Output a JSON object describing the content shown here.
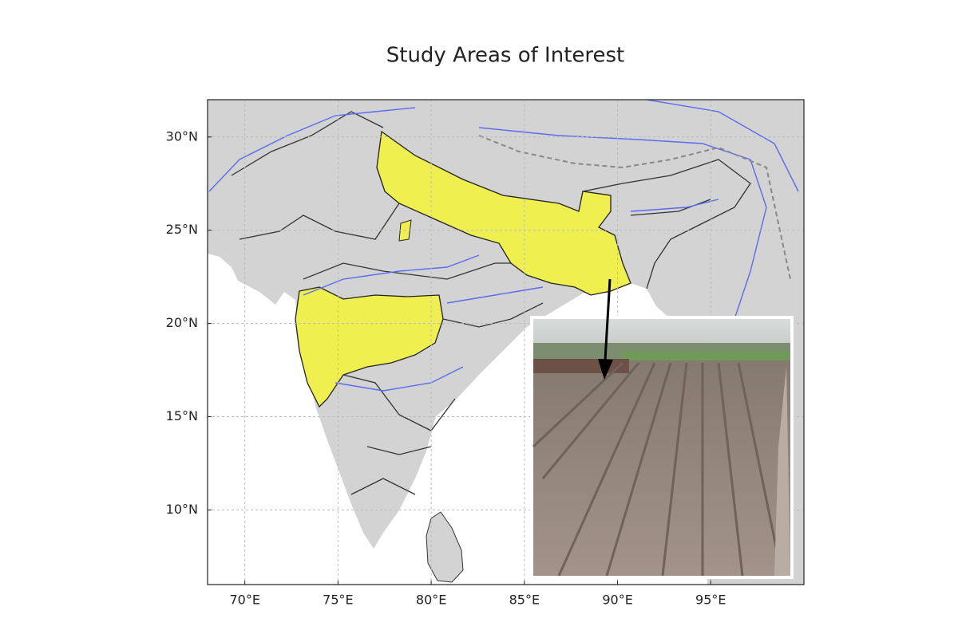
{
  "chart_data": {
    "type": "map",
    "title": "Study Areas of Interest",
    "xlim": [
      68,
      100
    ],
    "ylim": [
      6,
      32
    ],
    "xticks": [
      {
        "value": 70,
        "label": "70°E"
      },
      {
        "value": 75,
        "label": "75°E"
      },
      {
        "value": 80,
        "label": "80°E"
      },
      {
        "value": 85,
        "label": "85°E"
      },
      {
        "value": 90,
        "label": "90°E"
      },
      {
        "value": 95,
        "label": "95°E"
      }
    ],
    "yticks": [
      {
        "value": 10,
        "label": "10°N"
      },
      {
        "value": 15,
        "label": "15°N"
      },
      {
        "value": 20,
        "label": "20°N"
      },
      {
        "value": 25,
        "label": "25°N"
      },
      {
        "value": 30,
        "label": "30°N"
      }
    ],
    "grid": true
  }
}
